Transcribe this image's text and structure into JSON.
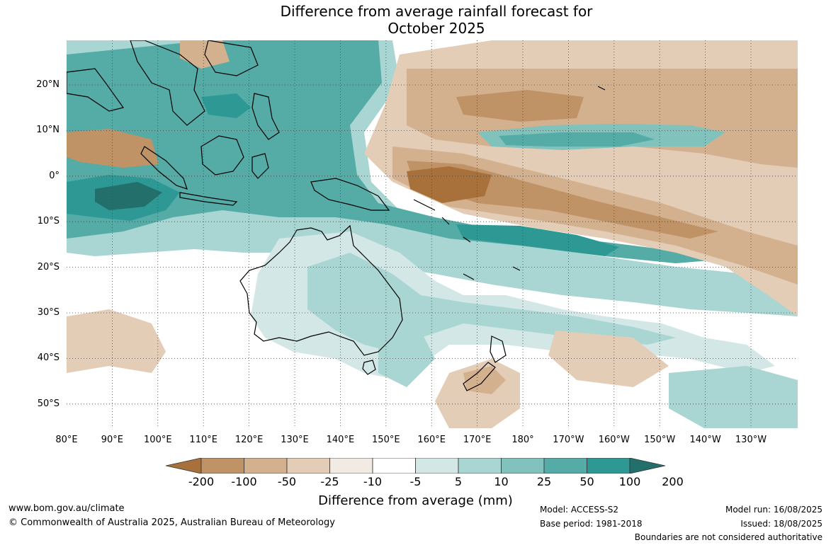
{
  "title_line1": "Difference from average rainfall forecast for",
  "title_line2": "October 2025",
  "lat_labels": [
    "20°N",
    "10°N",
    "0°",
    "10°S",
    "20°S",
    "30°S",
    "40°S",
    "50°S"
  ],
  "lon_labels": [
    "80°E",
    "90°E",
    "100°E",
    "110°E",
    "120°E",
    "130°E",
    "140°E",
    "150°E",
    "160°E",
    "170°E",
    "180°",
    "170°W",
    "160°W",
    "150°W",
    "140°W",
    "130°W"
  ],
  "colorbar": {
    "ticks": [
      "-200",
      "-100",
      "-50",
      "-25",
      "-10",
      "-5",
      "5",
      "10",
      "25",
      "50",
      "100",
      "200"
    ],
    "colors": [
      "#a8703a",
      "#bf9366",
      "#d3b18e",
      "#e3cdb6",
      "#f2ebe3",
      "#ffffff",
      "#d3e8e6",
      "#a9d5d2",
      "#82c2bd",
      "#55aba6",
      "#2e9994",
      "#236f6c"
    ],
    "label": "Difference from average (mm)"
  },
  "footer": {
    "url": "www.bom.gov.au/climate",
    "copyright": "© Commonwealth of Australia 2025, Australian Bureau of Meteorology",
    "model": "Model: ACCESS-S2",
    "base_period": "Base period: 1981-2018",
    "model_run": "Model run: 16/08/2025",
    "issued": "Issued: 18/08/2025",
    "disclaimer": "Boundaries are not considered authoritative"
  }
}
